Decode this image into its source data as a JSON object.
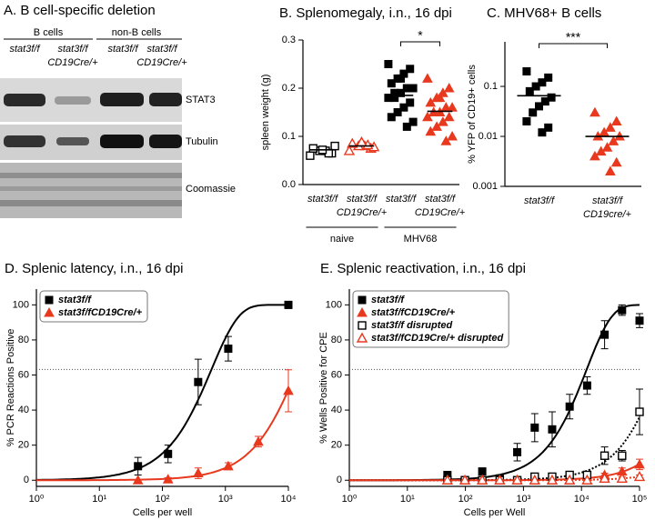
{
  "blot": {
    "title": "A.   B cell-specific deletion",
    "groups": [
      "B cells",
      "non-B cells"
    ],
    "lanes": [
      [
        "stat3f/f"
      ],
      [
        "stat3f/f",
        "CD19Cre/+"
      ],
      [
        "stat3f/f"
      ],
      [
        "stat3f/f",
        "CD19Cre/+"
      ]
    ],
    "bands": [
      "STAT3",
      "Tubulin",
      "Coomassie"
    ]
  },
  "chart_data": [
    {
      "type": "dotplot",
      "title": "B.   Splenomegaly, i.n., 16 dpi",
      "ylabel": "spleen weight (g)",
      "categories": [
        [
          "stat3f/f"
        ],
        [
          "stat3f/f",
          "CD19Cre/+"
        ],
        [
          "stat3f/f"
        ],
        [
          "stat3f/f",
          "CD19Cre/+"
        ]
      ],
      "groups": [
        "naive",
        "MHV68"
      ],
      "values": [
        [
          0.06,
          0.065,
          0.07,
          0.07,
          0.075,
          0.08,
          0.065,
          0.072
        ],
        [
          0.07,
          0.075,
          0.08,
          0.08,
          0.085,
          0.078,
          0.082,
          0.088
        ],
        [
          0.25,
          0.24,
          0.23,
          0.22,
          0.21,
          0.2,
          0.2,
          0.19,
          0.18,
          0.18,
          0.17,
          0.16,
          0.15,
          0.14,
          0.13,
          0.12,
          0.22,
          0.19
        ],
        [
          0.22,
          0.2,
          0.19,
          0.18,
          0.17,
          0.16,
          0.16,
          0.15,
          0.15,
          0.14,
          0.14,
          0.13,
          0.12,
          0.11,
          0.1,
          0.09,
          0.18
        ]
      ],
      "means": [
        0.072,
        0.08,
        0.185,
        0.152
      ],
      "colors": [
        "#000000",
        "#e8391f",
        "#000000",
        "#e8391f"
      ],
      "markers": [
        "square-open",
        "triangle-open",
        "square",
        "triangle"
      ],
      "ylim": [
        0,
        0.3
      ],
      "yticks": [
        {
          "value": 0,
          "label": "0.0"
        },
        0.1,
        0.2,
        0.3
      ],
      "significance": "*"
    },
    {
      "type": "dotplot",
      "title": "C.   MHV68+ B cells",
      "ylabel": "% YFP of CD19+ cells",
      "log_y": true,
      "categories": [
        [
          "stat3f/f"
        ],
        [
          "stat3f/f",
          "CD19cre/+"
        ]
      ],
      "values": [
        [
          0.2,
          0.15,
          0.12,
          0.1,
          0.08,
          0.06,
          0.05,
          0.04,
          0.03,
          0.02,
          0.015,
          0.012
        ],
        [
          0.03,
          0.02,
          0.015,
          0.012,
          0.01,
          0.01,
          0.008,
          0.006,
          0.005,
          0.004,
          0.003,
          0.002
        ]
      ],
      "means": [
        0.065,
        0.01
      ],
      "colors": [
        "#000000",
        "#e8391f"
      ],
      "markers": [
        "square",
        "triangle"
      ],
      "ylim": [
        0.001,
        0.78
      ],
      "yticks": [
        0.001,
        0.01,
        0.1
      ],
      "significance": "***"
    },
    {
      "type": "line",
      "title": "D.   Splenic latency, i.n., 16 dpi",
      "xlabel": "Cells per well",
      "ylabel": "% PCR Reactions Positive",
      "log_x": true,
      "xlim": [
        1,
        10000
      ],
      "xticks": [
        {
          "value": 1,
          "label": "10⁰"
        },
        {
          "value": 10,
          "label": "10¹"
        },
        {
          "value": 100,
          "label": "10²"
        },
        {
          "value": 1000,
          "label": "10³"
        },
        {
          "value": 10000,
          "label": "10⁴"
        }
      ],
      "ylim": [
        -3.5,
        109
      ],
      "yticks": [
        0,
        20,
        40,
        60,
        80,
        100
      ],
      "reference_line": 63.2,
      "legend": "upper left",
      "series": [
        {
          "name": "stat3f/f",
          "color": "#000000",
          "marker": "square",
          "line_style": "solid",
          "x": [
            41,
            123,
            370,
            1111,
            10000
          ],
          "values": [
            8,
            15,
            56,
            75,
            100
          ],
          "errors": [
            5,
            5,
            13,
            7,
            2
          ]
        },
        {
          "name": "stat3f/fCD19Cre/+",
          "color": "#e8391f",
          "marker": "triangle",
          "line_style": "solid",
          "x": [
            41,
            123,
            370,
            1111,
            3333,
            10000
          ],
          "values": [
            0,
            0.5,
            4,
            8,
            22,
            51
          ],
          "errors": [
            0,
            1,
            3,
            2,
            3,
            12
          ]
        }
      ]
    },
    {
      "type": "line",
      "title": "E.   Splenic reactivation, i.n., 16 dpi",
      "xlabel": "Cells per Well",
      "ylabel": "% Wells Positive for CPE",
      "log_x": true,
      "xlim": [
        1,
        100000
      ],
      "xticks": [
        {
          "value": 1,
          "label": "10⁰"
        },
        {
          "value": 10,
          "label": "10¹"
        },
        {
          "value": 100,
          "label": "10²"
        },
        {
          "value": 1000,
          "label": "10³"
        },
        {
          "value": 10000,
          "label": "10⁴"
        },
        {
          "value": 100000,
          "label": "10⁵"
        }
      ],
      "ylim": [
        -3.5,
        109
      ],
      "yticks": [
        0,
        20,
        40,
        60,
        80,
        100
      ],
      "reference_line": 63.2,
      "legend": "upper left",
      "series": [
        {
          "name": "stat3f/f",
          "color": "#000000",
          "marker": "square",
          "line_style": "solid",
          "x": [
            49,
            98,
            195,
            391,
            781,
            1563,
            3125,
            6250,
            12500,
            25000,
            50000,
            100000
          ],
          "values": [
            3,
            0,
            5,
            1,
            16,
            30,
            29,
            42,
            54,
            83,
            97,
            91
          ],
          "errors": [
            1,
            1,
            1,
            1,
            5,
            8,
            10,
            7,
            5,
            8,
            3,
            4
          ]
        },
        {
          "name": "stat3f/fCD19Cre/+",
          "color": "#e8391f",
          "marker": "triangle",
          "line_style": "solid",
          "x": [
            49,
            98,
            195,
            391,
            781,
            1563,
            3125,
            6250,
            12500,
            25000,
            50000,
            100000
          ],
          "values": [
            0,
            0,
            0,
            0,
            0,
            0,
            0,
            0,
            2,
            3,
            5,
            9
          ],
          "errors": [
            0,
            0,
            0,
            0,
            0,
            0,
            0,
            0,
            1,
            1,
            2,
            3
          ]
        },
        {
          "name": "stat3f/f disrupted",
          "color": "#000000",
          "marker": "square-open",
          "line_style": "dotted",
          "x": [
            49,
            98,
            195,
            391,
            781,
            1563,
            3125,
            6250,
            12500,
            25000,
            50000,
            100000
          ],
          "values": [
            0,
            0,
            0,
            0,
            0,
            2,
            2,
            3,
            3,
            14,
            14,
            39
          ],
          "errors": [
            0,
            0,
            0,
            0,
            0,
            1,
            1,
            1,
            1,
            5,
            3,
            13
          ]
        },
        {
          "name": "stat3f/fCD19Cre/+ disrupted",
          "color": "#e8391f",
          "marker": "triangle-open",
          "line_style": "dotted",
          "x": [
            49,
            98,
            195,
            391,
            781,
            1563,
            3125,
            6250,
            12500,
            25000,
            50000,
            100000
          ],
          "values": [
            0,
            0,
            0,
            0,
            0,
            0,
            0,
            0,
            0,
            1,
            1,
            2
          ],
          "errors": [
            0,
            0,
            0,
            0,
            0,
            0,
            0,
            0,
            0,
            1,
            1,
            1
          ]
        }
      ]
    }
  ]
}
